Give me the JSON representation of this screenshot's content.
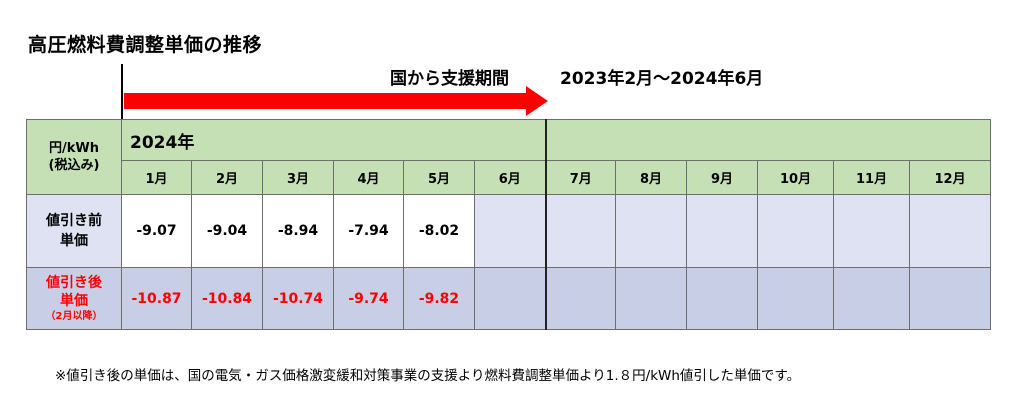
{
  "title": "高圧燃料費調整単価の推移",
  "support_label": "国から支援期間",
  "support_period": "2023年2月～2024年6月",
  "colors": {
    "arrow": "#ff0000",
    "header_bg": "#c5e0b4",
    "row_bg": "#dee2f2",
    "row2_bg": "#c9cee7",
    "highlight": "#ff0000"
  },
  "table": {
    "unit_line1": "円/kWh",
    "unit_line2": "(税込み)",
    "year": "2024年",
    "months": [
      "1月",
      "2月",
      "3月",
      "4月",
      "5月",
      "6月",
      "7月",
      "8月",
      "9月",
      "10月",
      "11月",
      "12月"
    ],
    "row1": {
      "label_line1": "値引き前",
      "label_line2": "単価",
      "values": [
        "-9.07",
        "-9.04",
        "-8.94",
        "-7.94",
        "-8.02",
        "",
        "",
        "",
        "",
        "",
        "",
        ""
      ]
    },
    "row2": {
      "label_line1": "値引き後",
      "label_line2": "単価",
      "label_note": "（2月以降）",
      "values": [
        "-10.87",
        "-10.84",
        "-10.74",
        "-9.74",
        "-9.82",
        "",
        "",
        "",
        "",
        "",
        "",
        ""
      ]
    }
  },
  "note": "※値引き後の単価は、国の電気・ガス価格激変緩和対策事業の支援より燃料費調整単価より1.８円/kWh値引した単価です。"
}
